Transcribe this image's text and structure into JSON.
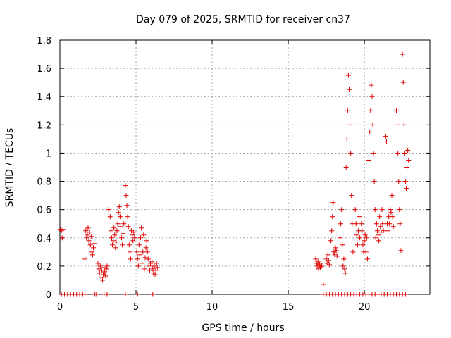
{
  "chart_data": {
    "type": "scatter",
    "title": "Day 079 of 2025, SRMTID for receiver cn37",
    "xlabel": "GPS time / hours",
    "ylabel": "SRMTID / TECUs",
    "xlim": [
      0,
      24.3
    ],
    "ylim": [
      0,
      1.8
    ],
    "grid": true,
    "x_ticks": [
      0,
      5,
      10,
      15,
      20
    ],
    "x_tick_labels": [
      "0",
      "5",
      "10",
      "15",
      "20"
    ],
    "y_ticks": [
      0,
      0.2,
      0.4,
      0.6,
      0.8,
      1,
      1.2,
      1.4,
      1.6,
      1.8
    ],
    "y_tick_labels": [
      "0",
      "0.2",
      "0.4",
      "0.6",
      "0.8",
      "1",
      "1.2",
      "1.4",
      "1.6",
      "1.8"
    ],
    "marker": "+",
    "color": "#e00000",
    "series": [
      {
        "name": "SRMTID",
        "points": [
          [
            0.05,
            0.46
          ],
          [
            0.1,
            0.45
          ],
          [
            0.15,
            0.4
          ],
          [
            0.2,
            0.46
          ],
          [
            1.7,
            0.45
          ],
          [
            1.75,
            0.4
          ],
          [
            1.8,
            0.42
          ],
          [
            1.85,
            0.47
          ],
          [
            1.9,
            0.38
          ],
          [
            1.95,
            0.44
          ],
          [
            2.0,
            0.35
          ],
          [
            2.05,
            0.41
          ],
          [
            2.1,
            0.3
          ],
          [
            2.15,
            0.28
          ],
          [
            2.2,
            0.33
          ],
          [
            2.25,
            0.36
          ],
          [
            1.65,
            0.25
          ],
          [
            2.5,
            0.22
          ],
          [
            2.55,
            0.18
          ],
          [
            2.6,
            0.15
          ],
          [
            2.65,
            0.2
          ],
          [
            2.7,
            0.12
          ],
          [
            2.75,
            0.17
          ],
          [
            2.8,
            0.1
          ],
          [
            2.85,
            0.14
          ],
          [
            2.9,
            0.19
          ],
          [
            2.95,
            0.16
          ],
          [
            3.0,
            0.13
          ],
          [
            3.05,
            0.18
          ],
          [
            3.1,
            0.2
          ],
          [
            3.2,
            0.6
          ],
          [
            3.3,
            0.55
          ],
          [
            3.35,
            0.45
          ],
          [
            3.4,
            0.4
          ],
          [
            3.45,
            0.35
          ],
          [
            3.5,
            0.38
          ],
          [
            3.55,
            0.47
          ],
          [
            3.6,
            0.42
          ],
          [
            3.65,
            0.33
          ],
          [
            3.7,
            0.37
          ],
          [
            3.75,
            0.45
          ],
          [
            3.8,
            0.5
          ],
          [
            3.85,
            0.58
          ],
          [
            3.9,
            0.62
          ],
          [
            3.95,
            0.55
          ],
          [
            4.0,
            0.48
          ],
          [
            4.05,
            0.4
          ],
          [
            4.1,
            0.35
          ],
          [
            4.15,
            0.43
          ],
          [
            4.2,
            0.5
          ],
          [
            4.3,
            0.77
          ],
          [
            4.35,
            0.7
          ],
          [
            4.4,
            0.63
          ],
          [
            4.45,
            0.55
          ],
          [
            4.5,
            0.48
          ],
          [
            4.55,
            0.35
          ],
          [
            4.6,
            0.3
          ],
          [
            4.65,
            0.25
          ],
          [
            4.7,
            0.45
          ],
          [
            4.75,
            0.42
          ],
          [
            4.8,
            0.38
          ],
          [
            4.85,
            0.44
          ],
          [
            4.9,
            0.4
          ],
          [
            5.05,
            0.3
          ],
          [
            5.1,
            0.25
          ],
          [
            5.15,
            0.2
          ],
          [
            5.2,
            0.35
          ],
          [
            5.25,
            0.28
          ],
          [
            5.3,
            0.4
          ],
          [
            5.35,
            0.47
          ],
          [
            5.4,
            0.22
          ],
          [
            5.45,
            0.3
          ],
          [
            5.5,
            0.42
          ],
          [
            5.55,
            0.18
          ],
          [
            5.6,
            0.26
          ],
          [
            5.65,
            0.33
          ],
          [
            5.7,
            0.38
          ],
          [
            5.75,
            0.3
          ],
          [
            5.8,
            0.25
          ],
          [
            5.85,
            0.2
          ],
          [
            5.9,
            0.17
          ],
          [
            5.95,
            0.22
          ],
          [
            6.05,
            0.23
          ],
          [
            6.1,
            0.18
          ],
          [
            6.15,
            0.15
          ],
          [
            6.2,
            0.2
          ],
          [
            6.25,
            0.14
          ],
          [
            6.3,
            0.17
          ],
          [
            6.35,
            0.22
          ],
          [
            6.4,
            0.19
          ],
          [
            16.8,
            0.25
          ],
          [
            16.85,
            0.22
          ],
          [
            16.9,
            0.2
          ],
          [
            16.95,
            0.23
          ],
          [
            17.0,
            0.18
          ],
          [
            17.05,
            0.21
          ],
          [
            17.1,
            0.19
          ],
          [
            17.15,
            0.22
          ],
          [
            17.2,
            0.2
          ],
          [
            17.3,
            0.07
          ],
          [
            17.5,
            0.25
          ],
          [
            17.55,
            0.22
          ],
          [
            17.6,
            0.28
          ],
          [
            17.65,
            0.24
          ],
          [
            17.7,
            0.21
          ],
          [
            17.8,
            0.38
          ],
          [
            17.85,
            0.45
          ],
          [
            17.9,
            0.55
          ],
          [
            17.95,
            0.65
          ],
          [
            18.0,
            0.3
          ],
          [
            18.05,
            0.28
          ],
          [
            18.1,
            0.33
          ],
          [
            18.15,
            0.31
          ],
          [
            18.2,
            0.27
          ],
          [
            18.4,
            0.4
          ],
          [
            18.45,
            0.5
          ],
          [
            18.5,
            0.6
          ],
          [
            18.55,
            0.35
          ],
          [
            18.6,
            0.2
          ],
          [
            18.65,
            0.25
          ],
          [
            18.7,
            0.18
          ],
          [
            18.75,
            0.15
          ],
          [
            18.8,
            0.9
          ],
          [
            18.85,
            1.1
          ],
          [
            18.9,
            1.3
          ],
          [
            18.95,
            1.55
          ],
          [
            19.0,
            1.45
          ],
          [
            19.05,
            1.2
          ],
          [
            19.1,
            1.0
          ],
          [
            19.15,
            0.7
          ],
          [
            19.2,
            0.5
          ],
          [
            19.25,
            0.3
          ],
          [
            19.4,
            0.6
          ],
          [
            19.45,
            0.5
          ],
          [
            19.5,
            0.42
          ],
          [
            19.55,
            0.35
          ],
          [
            19.6,
            0.45
          ],
          [
            19.65,
            0.55
          ],
          [
            19.7,
            0.4
          ],
          [
            19.8,
            0.5
          ],
          [
            19.85,
            0.45
          ],
          [
            19.9,
            0.35
          ],
          [
            19.95,
            0.3
          ],
          [
            20.0,
            0.38
          ],
          [
            20.05,
            0.42
          ],
          [
            20.1,
            0.3
          ],
          [
            20.15,
            0.4
          ],
          [
            20.2,
            0.25
          ],
          [
            20.3,
            0.95
          ],
          [
            20.35,
            1.15
          ],
          [
            20.4,
            1.3
          ],
          [
            20.45,
            1.48
          ],
          [
            20.5,
            1.4
          ],
          [
            20.55,
            1.2
          ],
          [
            20.6,
            1.0
          ],
          [
            20.65,
            0.8
          ],
          [
            20.7,
            0.6
          ],
          [
            20.75,
            0.4
          ],
          [
            20.8,
            0.5
          ],
          [
            20.85,
            0.45
          ],
          [
            20.9,
            0.42
          ],
          [
            20.95,
            0.38
          ],
          [
            21.0,
            0.55
          ],
          [
            21.05,
            0.48
          ],
          [
            21.1,
            0.44
          ],
          [
            21.15,
            0.6
          ],
          [
            21.2,
            0.5
          ],
          [
            21.25,
            0.45
          ],
          [
            21.4,
            1.12
          ],
          [
            21.45,
            1.08
          ],
          [
            21.5,
            0.5
          ],
          [
            21.55,
            0.45
          ],
          [
            21.6,
            0.55
          ],
          [
            21.65,
            0.5
          ],
          [
            21.7,
            0.6
          ],
          [
            21.75,
            0.58
          ],
          [
            21.8,
            0.7
          ],
          [
            21.85,
            0.55
          ],
          [
            21.9,
            0.48
          ],
          [
            22.1,
            1.3
          ],
          [
            22.15,
            1.2
          ],
          [
            22.2,
            1.0
          ],
          [
            22.25,
            0.8
          ],
          [
            22.3,
            0.6
          ],
          [
            22.35,
            0.5
          ],
          [
            22.4,
            0.31
          ],
          [
            22.5,
            1.7
          ],
          [
            22.55,
            1.5
          ],
          [
            22.6,
            1.2
          ],
          [
            22.65,
            1.0
          ],
          [
            22.7,
            0.8
          ],
          [
            22.75,
            0.75
          ],
          [
            22.8,
            0.9
          ],
          [
            22.85,
            1.02
          ],
          [
            22.9,
            0.95
          ]
        ],
        "zero_points_x": [
          0.1,
          0.3,
          0.5,
          0.7,
          0.9,
          1.1,
          1.3,
          1.5,
          1.65,
          2.3,
          2.4,
          2.9,
          3.1,
          4.3,
          5.1,
          6.1,
          17.3,
          17.5,
          17.7,
          17.9,
          18.1,
          18.3,
          18.5,
          18.7,
          18.9,
          19.1,
          19.3,
          19.5,
          19.7,
          19.9,
          20.1,
          20.3,
          20.5,
          20.7,
          20.9,
          21.1,
          21.3,
          21.5,
          21.7,
          21.9,
          22.1,
          22.3,
          22.5,
          22.7
        ]
      }
    ]
  }
}
